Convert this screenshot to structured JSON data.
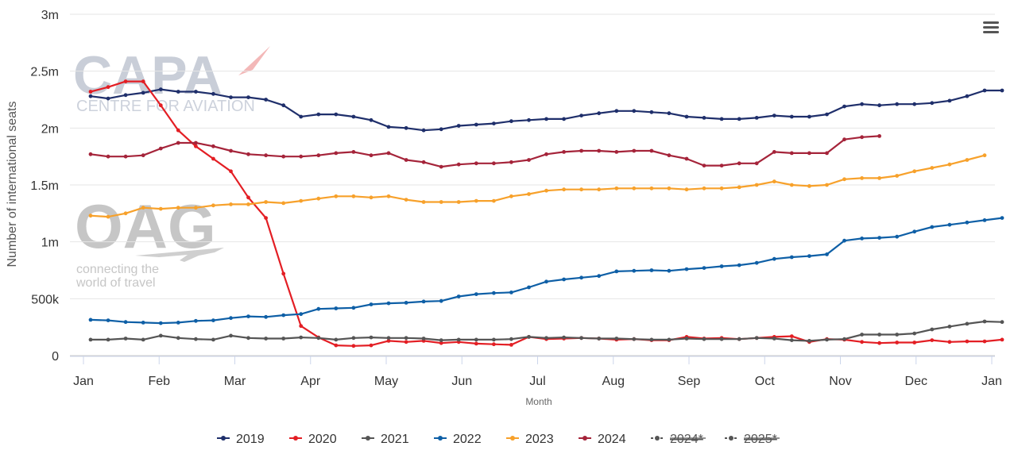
{
  "chart_data": {
    "type": "line",
    "title": "",
    "xlabel": "Month",
    "ylabel": "Number of international seats",
    "ylim": [
      0,
      3000000
    ],
    "y_ticks": [
      {
        "value": 0,
        "label": "0"
      },
      {
        "value": 500000,
        "label": "500k"
      },
      {
        "value": 1000000,
        "label": "1m"
      },
      {
        "value": 1500000,
        "label": "1.5m"
      },
      {
        "value": 2000000,
        "label": "2m"
      },
      {
        "value": 2500000,
        "label": "2.5m"
      },
      {
        "value": 3000000,
        "label": "3m"
      }
    ],
    "x_ticks": [
      "Jan",
      "Feb",
      "Mar",
      "Apr",
      "May",
      "Jun",
      "Jul",
      "Aug",
      "Sep",
      "Oct",
      "Nov",
      "Dec",
      "Jan"
    ],
    "x_unit": "week of year",
    "grid": "horizontal",
    "legend_position": "bottom-center",
    "series": [
      {
        "name": "2019",
        "color": "#1f2f6b",
        "start_week": 1,
        "values": [
          2280000,
          2260000,
          2290000,
          2310000,
          2340000,
          2320000,
          2320000,
          2300000,
          2270000,
          2270000,
          2250000,
          2200000,
          2100000,
          2120000,
          2120000,
          2100000,
          2070000,
          2010000,
          2000000,
          1980000,
          1990000,
          2020000,
          2030000,
          2040000,
          2060000,
          2070000,
          2080000,
          2080000,
          2110000,
          2130000,
          2150000,
          2150000,
          2140000,
          2130000,
          2100000,
          2090000,
          2080000,
          2080000,
          2090000,
          2110000,
          2100000,
          2100000,
          2120000,
          2190000,
          2210000,
          2200000,
          2210000,
          2210000,
          2220000,
          2240000,
          2280000,
          2330000,
          2330000
        ]
      },
      {
        "name": "2020",
        "color": "#e31e24",
        "start_week": 1,
        "values": [
          2320000,
          2360000,
          2410000,
          2410000,
          2200000,
          1980000,
          1840000,
          1730000,
          1620000,
          1390000,
          1210000,
          720000,
          260000,
          160000,
          90000,
          85000,
          90000,
          130000,
          120000,
          130000,
          110000,
          120000,
          105000,
          100000,
          95000,
          165000,
          145000,
          150000,
          155000,
          150000,
          140000,
          145000,
          135000,
          135000,
          165000,
          150000,
          155000,
          145000,
          155000,
          165000,
          170000,
          120000,
          145000,
          140000,
          120000,
          110000,
          115000,
          115000,
          135000,
          120000,
          125000,
          125000,
          140000
        ]
      },
      {
        "name": "2021",
        "color": "#555555",
        "start_week": 1,
        "values": [
          140000,
          140000,
          150000,
          140000,
          175000,
          155000,
          145000,
          140000,
          175000,
          155000,
          150000,
          150000,
          160000,
          155000,
          140000,
          155000,
          160000,
          155000,
          155000,
          150000,
          135000,
          140000,
          140000,
          140000,
          145000,
          165000,
          155000,
          160000,
          155000,
          150000,
          150000,
          145000,
          140000,
          140000,
          150000,
          145000,
          145000,
          145000,
          155000,
          150000,
          135000,
          130000,
          140000,
          145000,
          185000,
          185000,
          185000,
          195000,
          230000,
          255000,
          280000,
          300000,
          295000
        ]
      },
      {
        "name": "2022",
        "color": "#0e5fa6",
        "start_week": 1,
        "values": [
          315000,
          310000,
          295000,
          290000,
          285000,
          290000,
          305000,
          310000,
          330000,
          345000,
          340000,
          355000,
          365000,
          410000,
          415000,
          420000,
          450000,
          460000,
          465000,
          475000,
          480000,
          520000,
          540000,
          550000,
          555000,
          600000,
          650000,
          670000,
          685000,
          700000,
          740000,
          745000,
          750000,
          745000,
          760000,
          770000,
          785000,
          795000,
          815000,
          850000,
          865000,
          875000,
          890000,
          1010000,
          1030000,
          1035000,
          1045000,
          1090000,
          1130000,
          1150000,
          1170000,
          1190000,
          1210000
        ]
      },
      {
        "name": "2023",
        "color": "#f7a12b",
        "start_week": 1,
        "values": [
          1230000,
          1220000,
          1250000,
          1300000,
          1290000,
          1300000,
          1300000,
          1320000,
          1330000,
          1330000,
          1350000,
          1340000,
          1360000,
          1380000,
          1400000,
          1400000,
          1390000,
          1400000,
          1370000,
          1350000,
          1350000,
          1350000,
          1360000,
          1360000,
          1400000,
          1420000,
          1450000,
          1460000,
          1460000,
          1460000,
          1470000,
          1470000,
          1470000,
          1470000,
          1460000,
          1470000,
          1470000,
          1480000,
          1500000,
          1530000,
          1500000,
          1490000,
          1500000,
          1550000,
          1560000,
          1560000,
          1580000,
          1620000,
          1650000,
          1680000,
          1720000,
          1760000
        ]
      },
      {
        "name": "2024",
        "color": "#a5243a",
        "start_week": 1,
        "values": [
          1770000,
          1750000,
          1750000,
          1760000,
          1820000,
          1870000,
          1870000,
          1840000,
          1800000,
          1770000,
          1760000,
          1750000,
          1750000,
          1760000,
          1780000,
          1790000,
          1760000,
          1780000,
          1720000,
          1700000,
          1660000,
          1680000,
          1690000,
          1690000,
          1700000,
          1720000,
          1770000,
          1790000,
          1800000,
          1800000,
          1790000,
          1800000,
          1800000,
          1760000,
          1730000,
          1670000,
          1670000,
          1690000,
          1690000,
          1790000,
          1780000,
          1780000,
          1780000,
          1900000,
          1920000,
          1930000
        ]
      }
    ],
    "hidden_series": [
      {
        "name": "2024*",
        "color": "#555555"
      },
      {
        "name": "2025*",
        "color": "#555555"
      }
    ]
  },
  "watermarks": {
    "capa_logo_text": "CAPA",
    "capa_subtitle": "CENTRE FOR AVIATION",
    "oag_logo_text": "OAG",
    "oag_tagline_1": "connecting the",
    "oag_tagline_2": "world of travel"
  },
  "menu_icon": "hamburger-menu-icon"
}
